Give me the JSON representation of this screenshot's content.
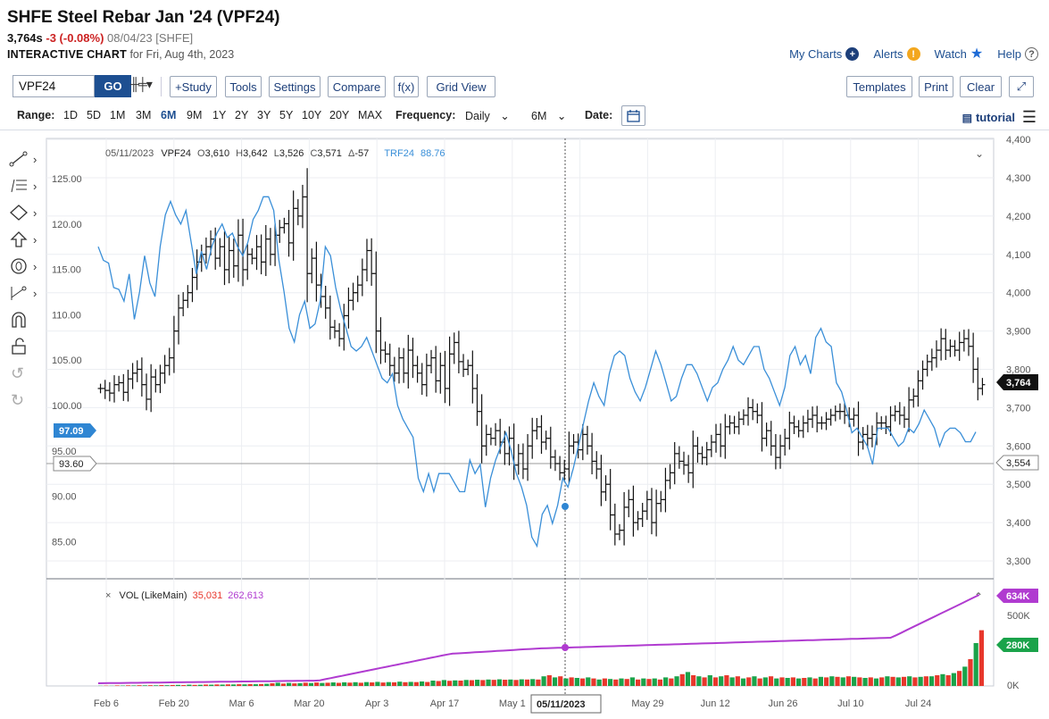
{
  "header": {
    "title": "SHFE Steel Rebar Jan '24 (VPF24)",
    "last": "3,764s",
    "change": "-3 (-0.08%)",
    "date_exchange": "08/04/23 [SHFE]",
    "interactive_label": "INTERACTIVE CHART",
    "interactive_for": "for Fri, Aug 4th, 2023"
  },
  "toplinks": {
    "my_charts": "My Charts",
    "alerts": "Alerts",
    "watch": "Watch",
    "help": "Help"
  },
  "toolbar": {
    "symbol_value": "VPF24",
    "go": "GO",
    "study": "+Study",
    "tools": "Tools",
    "settings": "Settings",
    "compare": "Compare",
    "fx": "f(x)",
    "grid_view": "Grid View",
    "templates": "Templates",
    "print": "Print",
    "clear": "Clear"
  },
  "rangebar": {
    "range_label": "Range:",
    "ranges": [
      "1D",
      "5D",
      "1M",
      "3M",
      "6M",
      "9M",
      "1Y",
      "2Y",
      "3Y",
      "5Y",
      "10Y",
      "20Y",
      "MAX"
    ],
    "active_range": "6M",
    "frequency_label": "Frequency:",
    "frequency_value": "Daily",
    "period_value": "6M",
    "date_label": "Date:",
    "tutorial": "tutorial"
  },
  "colors": {
    "accent": "#1d4f91",
    "compare_line": "#3a8fd8",
    "volume_up": "#1aa34a",
    "volume_down": "#e8372c",
    "volume_avg": "#b03bd0",
    "negative": "#cc2222"
  },
  "chart_data": {
    "type": "line",
    "ohlc_readout": {
      "date": "05/11/2023",
      "symbol": "VPF24",
      "o_label": "O",
      "o": "3,610",
      "h_label": "H",
      "h": "3,642",
      "l_label": "L",
      "l": "3,526",
      "c_label": "C",
      "c": "3,571",
      "d_label": "Δ",
      "d": "-57"
    },
    "compare_readout": {
      "symbol": "TRF24",
      "value": "88.76"
    },
    "volume_readout": {
      "label": "VOL (LikeMain)",
      "vol": "35,031",
      "avg": "262,613"
    },
    "crosshair_date": "05/11/2023",
    "x_ticks": [
      "Feb 6",
      "Feb 20",
      "Mar 6",
      "Mar 20",
      "Apr 3",
      "Apr 17",
      "May 1",
      "May 15",
      "May 29",
      "Jun 12",
      "Jun 26",
      "Jul 10",
      "Jul 24"
    ],
    "left_axis": {
      "ticks": [
        "125.00",
        "120.00",
        "115.00",
        "110.00",
        "105.00",
        "100.00",
        "95.00",
        "90.00",
        "85.00"
      ],
      "range": [
        82,
        129.5
      ]
    },
    "right_axis": {
      "ticks": [
        "4,400",
        "4,300",
        "4,200",
        "4,100",
        "4,000",
        "3,900",
        "3,800",
        "3,700",
        "3,600",
        "3,500",
        "3,400",
        "3,300"
      ],
      "range": [
        3250,
        4400
      ]
    },
    "tags": {
      "left_compare_last": "97.09",
      "left_crosshair": "93.60",
      "right_last": "3,764",
      "right_crosshair": "3,554",
      "vol_avg_last": "634K",
      "vol_last": "280K"
    },
    "volume_axis": {
      "ticks": [
        "500K",
        "0K"
      ],
      "max": 700
    },
    "series": [
      {
        "name": "VPF24",
        "style": "ohlc",
        "axis": "right",
        "values": [
          3750,
          3745,
          3738,
          3760,
          3765,
          3740,
          3775,
          3790,
          3800,
          3760,
          3722,
          3780,
          3760,
          3790,
          3810,
          3830,
          3900,
          3960,
          3980,
          4000,
          4040,
          4080,
          4100,
          4120,
          4140,
          4090,
          4120,
          4060,
          4110,
          4070,
          4150,
          4060,
          4100,
          4090,
          4120,
          4080,
          4140,
          4100,
          4150,
          4170,
          4180,
          4130,
          4220,
          4200,
          4250,
          4050,
          4090,
          4020,
          3990,
          3960,
          3910,
          3900,
          3880,
          3940,
          3980,
          4000,
          4020,
          4060,
          4110,
          4050,
          3900,
          3850,
          3840,
          3810,
          3790,
          3830,
          3790,
          3850,
          3810,
          3790,
          3760,
          3810,
          3830,
          3770,
          3810,
          3750,
          3840,
          3870,
          3820,
          3800,
          3810,
          3750,
          3690,
          3600,
          3630,
          3620,
          3640,
          3610,
          3580,
          3620,
          3550,
          3580,
          3540,
          3600,
          3640,
          3650,
          3610,
          3620,
          3571,
          3554,
          3530,
          3540,
          3600,
          3610,
          3590,
          3630,
          3600,
          3560,
          3540,
          3480,
          3500,
          3420,
          3370,
          3380,
          3440,
          3460,
          3400,
          3410,
          3430,
          3460,
          3400,
          3450,
          3460,
          3510,
          3530,
          3580,
          3560,
          3550,
          3530,
          3600,
          3580,
          3570,
          3590,
          3610,
          3630,
          3600,
          3650,
          3660,
          3650,
          3670,
          3680,
          3700,
          3690,
          3680,
          3620,
          3640,
          3600,
          3570,
          3600,
          3620,
          3660,
          3650,
          3640,
          3660,
          3670,
          3680,
          3660,
          3660,
          3670,
          3680,
          3690,
          3690,
          3680,
          3670,
          3680,
          3610,
          3630,
          3620,
          3630,
          3660,
          3660,
          3650,
          3680,
          3690,
          3680,
          3670,
          3720,
          3730,
          3770,
          3800,
          3820,
          3830,
          3850,
          3880,
          3850,
          3860,
          3850,
          3870,
          3880,
          3860,
          3800,
          3750,
          3760
        ]
      },
      {
        "name": "TRF24",
        "style": "line",
        "axis": "left",
        "values": [
          117.5,
          116,
          115.7,
          113,
          112.8,
          111.5,
          114.5,
          109.5,
          112.5,
          116.5,
          113.5,
          112,
          117.5,
          121,
          122.5,
          121,
          120,
          121.5,
          118,
          114.5,
          117,
          115,
          117.5,
          119,
          120,
          118.5,
          119,
          117.5,
          116.5,
          118,
          120.5,
          121.5,
          123,
          123,
          121.5,
          116,
          112.5,
          108.5,
          107,
          110,
          111.5,
          108.5,
          109,
          111.5,
          117.5,
          116.5,
          113,
          110.5,
          108.5,
          106.5,
          106,
          106.5,
          107.5,
          106,
          104.5,
          103,
          102.5,
          103.5,
          100,
          98.5,
          97.5,
          96.5,
          92,
          90.5,
          92.5,
          90.5,
          92.5,
          92.5,
          92.5,
          91.5,
          90.5,
          90.5,
          94,
          92.5,
          93.5,
          88.8,
          92,
          94,
          95.5,
          97,
          95,
          92.5,
          91,
          89,
          85.5,
          84.5,
          88,
          89,
          87,
          89,
          92,
          91,
          93,
          95.5,
          98,
          100.5,
          102.5,
          101,
          100,
          103.5,
          105.5,
          106,
          105.5,
          103,
          101.5,
          100.5,
          102,
          104,
          106,
          104.5,
          102.5,
          100.5,
          101,
          103,
          104.5,
          104.5,
          103.5,
          102,
          100.5,
          102,
          102.5,
          104,
          105,
          106.5,
          105,
          104.5,
          105.5,
          106.5,
          106.5,
          104,
          103,
          101.5,
          100,
          102,
          105.5,
          106.5,
          104.5,
          105.5,
          103.5,
          107.5,
          108.5,
          107,
          106.5,
          102.5,
          101.5,
          99.5,
          97,
          97.5,
          96.5,
          95.5,
          93.5,
          97.5,
          97.5,
          97.5,
          96.5,
          95.5,
          96,
          97.5,
          97,
          98,
          99.5,
          98.5,
          97.5,
          95.5,
          97,
          97.5,
          97.5,
          97,
          96,
          96,
          97.09
        ]
      }
    ],
    "volume_up": [
      3,
      3,
      3,
      3,
      2,
      3,
      3,
      3,
      2,
      3,
      2,
      3,
      2,
      2,
      2,
      3,
      3,
      3,
      2,
      3,
      3,
      3,
      3,
      3,
      3,
      3,
      3,
      3,
      3,
      3,
      3,
      3,
      3,
      3,
      3,
      3,
      3,
      3,
      3,
      3,
      3,
      3,
      3,
      3,
      3,
      3,
      3,
      3,
      3,
      3,
      3,
      3,
      3,
      3,
      3,
      3,
      3,
      3,
      3,
      3,
      3,
      3,
      3,
      3,
      3,
      3,
      3,
      3,
      3,
      3,
      3,
      3,
      3,
      3,
      3,
      3,
      3,
      3,
      3,
      3,
      3,
      3,
      3,
      3,
      3,
      3,
      3,
      3,
      3,
      3,
      3,
      3,
      3,
      3,
      3,
      3,
      3,
      3,
      3,
      3,
      3,
      3,
      3,
      3,
      3,
      3,
      3,
      3,
      3,
      3,
      3,
      3,
      3,
      3,
      3,
      3,
      3,
      3,
      3,
      3,
      3,
      3,
      3,
      3,
      3,
      3,
      3,
      3,
      3,
      3,
      3,
      3,
      3,
      3,
      3,
      3,
      3,
      3,
      3,
      3,
      3,
      3,
      3,
      3,
      3,
      3,
      3,
      3,
      3,
      3,
      3,
      3,
      3,
      3,
      3,
      3,
      3,
      3,
      3,
      3,
      3,
      3,
      3,
      3,
      3,
      3,
      3,
      3,
      3,
      3,
      3,
      3,
      3,
      3,
      3,
      3,
      3,
      3,
      3,
      3,
      3,
      3,
      3,
      3,
      3,
      3,
      3,
      3,
      3,
      3,
      3,
      3,
      3,
      3,
      3,
      3,
      3,
      3,
      3,
      3,
      3,
      3,
      3,
      3,
      3,
      3,
      3,
      3,
      3,
      3,
      3,
      3,
      3,
      3,
      3,
      3
    ],
    "volume_bars": [
      [
        0.02,
        1
      ],
      [
        0.03,
        0
      ],
      [
        0.02,
        1
      ],
      [
        0.05,
        0
      ],
      [
        0.04,
        1
      ],
      [
        0.06,
        0
      ],
      [
        0.05,
        1
      ],
      [
        0.07,
        0
      ],
      [
        0.06,
        1
      ],
      [
        0.07,
        0
      ],
      [
        0.06,
        1
      ],
      [
        0.08,
        0
      ],
      [
        0.07,
        1
      ],
      [
        0.09,
        0
      ],
      [
        0.1,
        1
      ],
      [
        0.08,
        0
      ],
      [
        0.12,
        1
      ],
      [
        0.1,
        0
      ],
      [
        0.11,
        1
      ],
      [
        0.13,
        0
      ],
      [
        0.12,
        1
      ],
      [
        0.14,
        0
      ],
      [
        0.13,
        1
      ],
      [
        0.15,
        0
      ],
      [
        0.14,
        1
      ],
      [
        0.16,
        0
      ],
      [
        0.15,
        1
      ],
      [
        0.17,
        0
      ],
      [
        0.16,
        1
      ],
      [
        0.18,
        0
      ],
      [
        0.2,
        1
      ],
      [
        0.25,
        0
      ],
      [
        0.3,
        1
      ],
      [
        0.22,
        0
      ],
      [
        0.28,
        1
      ],
      [
        0.24,
        0
      ],
      [
        0.26,
        1
      ],
      [
        0.3,
        0
      ],
      [
        0.27,
        1
      ],
      [
        0.32,
        0
      ],
      [
        0.28,
        1
      ],
      [
        0.3,
        0
      ],
      [
        0.33,
        1
      ],
      [
        0.29,
        0
      ],
      [
        0.34,
        1
      ],
      [
        0.31,
        0
      ],
      [
        0.35,
        1
      ],
      [
        0.3,
        0
      ],
      [
        0.36,
        1
      ],
      [
        0.33,
        0
      ],
      [
        0.38,
        1
      ],
      [
        0.32,
        0
      ],
      [
        0.36,
        1
      ],
      [
        0.34,
        0
      ],
      [
        0.4,
        1
      ],
      [
        0.35,
        0
      ],
      [
        0.38,
        1
      ],
      [
        0.36,
        0
      ],
      [
        0.42,
        1
      ],
      [
        0.37,
        0
      ],
      [
        0.5,
        1
      ],
      [
        0.46,
        0
      ],
      [
        0.55,
        1
      ],
      [
        0.48,
        0
      ],
      [
        0.52,
        1
      ],
      [
        0.5,
        0
      ],
      [
        0.56,
        1
      ],
      [
        0.54,
        0
      ],
      [
        0.58,
        1
      ],
      [
        0.55,
        0
      ],
      [
        0.6,
        1
      ],
      [
        0.57,
        0
      ],
      [
        0.62,
        1
      ],
      [
        0.58,
        0
      ],
      [
        0.6,
        1
      ],
      [
        0.56,
        0
      ],
      [
        0.62,
        1
      ],
      [
        0.6,
        0
      ],
      [
        0.64,
        1
      ],
      [
        0.6,
        0
      ],
      [
        0.9,
        1
      ],
      [
        1.0,
        0
      ],
      [
        0.8,
        1
      ],
      [
        0.9,
        0
      ],
      [
        0.7,
        1
      ],
      [
        0.8,
        0
      ],
      [
        0.75,
        1
      ],
      [
        0.7,
        0
      ],
      [
        0.8,
        1
      ],
      [
        0.7,
        0
      ],
      [
        0.6,
        1
      ],
      [
        0.7,
        0
      ],
      [
        0.65,
        1
      ],
      [
        0.6,
        0
      ],
      [
        0.7,
        1
      ],
      [
        0.65,
        0
      ],
      [
        0.8,
        1
      ],
      [
        0.6,
        0
      ],
      [
        0.7,
        1
      ],
      [
        0.65,
        0
      ],
      [
        0.7,
        1
      ],
      [
        0.6,
        0
      ],
      [
        0.8,
        1
      ],
      [
        0.7,
        0
      ],
      [
        0.9,
        1
      ],
      [
        1.1,
        0
      ],
      [
        1.3,
        1
      ],
      [
        1.0,
        0
      ],
      [
        0.9,
        1
      ],
      [
        0.8,
        0
      ],
      [
        1.0,
        1
      ],
      [
        0.8,
        0
      ],
      [
        0.9,
        1
      ],
      [
        1.0,
        0
      ],
      [
        0.8,
        1
      ],
      [
        0.9,
        0
      ],
      [
        0.7,
        1
      ],
      [
        0.8,
        0
      ],
      [
        0.9,
        1
      ],
      [
        0.7,
        0
      ],
      [
        0.8,
        1
      ],
      [
        0.9,
        0
      ],
      [
        0.7,
        1
      ],
      [
        0.8,
        0
      ],
      [
        0.75,
        1
      ],
      [
        0.8,
        0
      ],
      [
        0.7,
        1
      ],
      [
        0.75,
        0
      ],
      [
        0.8,
        1
      ],
      [
        0.7,
        0
      ],
      [
        0.85,
        1
      ],
      [
        0.8,
        0
      ],
      [
        0.9,
        1
      ],
      [
        0.85,
        0
      ],
      [
        0.8,
        1
      ],
      [
        0.9,
        0
      ],
      [
        0.85,
        1
      ],
      [
        0.8,
        0
      ],
      [
        0.75,
        1
      ],
      [
        0.8,
        0
      ],
      [
        0.7,
        1
      ],
      [
        0.8,
        0
      ],
      [
        0.9,
        1
      ],
      [
        0.85,
        0
      ],
      [
        0.8,
        1
      ],
      [
        0.85,
        0
      ],
      [
        0.9,
        1
      ],
      [
        0.8,
        0
      ],
      [
        0.85,
        1
      ],
      [
        0.9,
        0
      ],
      [
        0.9,
        1
      ],
      [
        1.0,
        0
      ],
      [
        1.1,
        1
      ],
      [
        1.0,
        0
      ],
      [
        1.2,
        1
      ],
      [
        1.4,
        0
      ],
      [
        1.8,
        1
      ],
      [
        2.5,
        0
      ],
      [
        4.0,
        1
      ],
      [
        5.2,
        0
      ]
    ]
  }
}
